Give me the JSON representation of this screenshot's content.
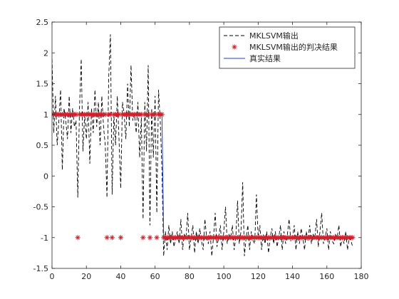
{
  "chart_data": {
    "type": "line",
    "xlim": [
      0,
      180
    ],
    "ylim": [
      -1.5,
      2.5
    ],
    "xticks": [
      0,
      20,
      40,
      60,
      80,
      100,
      120,
      140,
      160,
      180
    ],
    "yticks": [
      -1.5,
      -1,
      -0.5,
      0,
      0.5,
      1,
      1.5,
      2,
      2.5
    ],
    "xtick_labels": [
      "0",
      "20",
      "40",
      "60",
      "80",
      "100",
      "120",
      "140",
      "160",
      "180"
    ],
    "ytick_labels": [
      "-1.5",
      "-1",
      "-0.5",
      "0",
      "0.5",
      "1",
      "1.5",
      "2",
      "2.5"
    ],
    "grid": false,
    "legend_position": "top-right",
    "series": [
      {
        "name": "MKLSVM输出",
        "style": "dashed",
        "color": "#000000",
        "y": [
          1.9,
          0.7,
          1.3,
          0.5,
          0.9,
          1.4,
          0.1,
          1.1,
          0.9,
          0.6,
          1.3,
          0.7,
          1.1,
          0.8,
          0.9,
          -0.35,
          1.1,
          1.9,
          0.4,
          1.0,
          0.6,
          1.2,
          0.2,
          1.1,
          0.7,
          1.4,
          0.8,
          1.2,
          0.5,
          1.3,
          0.8,
          0.5,
          -0.35,
          1.6,
          2.3,
          -0.3,
          1.0,
          0.5,
          1.3,
          0.6,
          -0.2,
          1.2,
          1.0,
          0.6,
          1.5,
          0.8,
          1.8,
          0.9,
          1.0,
          0.7,
          1.2,
          0.3,
          0.95,
          -0.7,
          1.2,
          0.4,
          1.8,
          -0.8,
          1.1,
          0.3,
          1.3,
          -0.6,
          1.4,
          0.9,
          0.1,
          -1.3,
          -0.9,
          -1.2,
          -0.8,
          -1.1,
          -0.9,
          -1.15,
          -1.0,
          -0.9,
          -1.1,
          -0.7,
          -1.2,
          -0.95,
          -1.0,
          -0.6,
          -1.2,
          -1.0,
          -0.8,
          -1.25,
          -0.9,
          -1.1,
          -0.85,
          -1.05,
          -1.2,
          -0.7,
          -1.0,
          -1.1,
          -0.9,
          -1.3,
          -1.0,
          -0.6,
          -1.15,
          -1.0,
          -0.8,
          -1.2,
          -0.9,
          -0.5,
          -1.1,
          -0.95,
          -1.0,
          -0.8,
          -1.2,
          -1.0,
          -0.4,
          -1.1,
          -0.9,
          -0.1,
          -1.3,
          -1.0,
          -0.8,
          -1.2,
          -0.9,
          -1.05,
          -1.1,
          -0.3,
          -1.0,
          -0.8,
          -1.2,
          -0.95,
          -1.1,
          -0.9,
          -1.25,
          -1.0,
          -0.85,
          -1.1,
          -0.9,
          -1.15,
          -1.0,
          -0.8,
          -1.2,
          -0.9,
          -1.1,
          -0.95,
          -0.7,
          -1.05,
          -1.0,
          -0.8,
          -1.2,
          -0.9,
          -1.1,
          -0.85,
          -1.0,
          -1.2,
          -0.9,
          -1.05,
          -0.8,
          -1.1,
          -0.95,
          -1.0,
          -0.7,
          -1.15,
          -0.9,
          -0.6,
          -1.1,
          -1.0,
          -0.85,
          -1.2,
          -0.9,
          -1.05,
          -1.1,
          -0.95,
          -1.0,
          -0.8,
          -1.15,
          -1.0,
          -1.1,
          -0.9,
          -1.2,
          -1.0,
          -1.05,
          -1.15
        ]
      },
      {
        "name": "MKLSVM输出的判决结果",
        "style": "markers",
        "marker": "asterisk",
        "color": "#d11f2a",
        "y_rule": "sign(MKLSVM输出)"
      },
      {
        "name": "真实结果",
        "style": "solid",
        "color": "#1f3fd1",
        "y": [
          [
            0,
            1
          ],
          [
            64,
            1
          ],
          [
            65,
            -1
          ],
          [
            176,
            -1
          ]
        ]
      }
    ]
  }
}
